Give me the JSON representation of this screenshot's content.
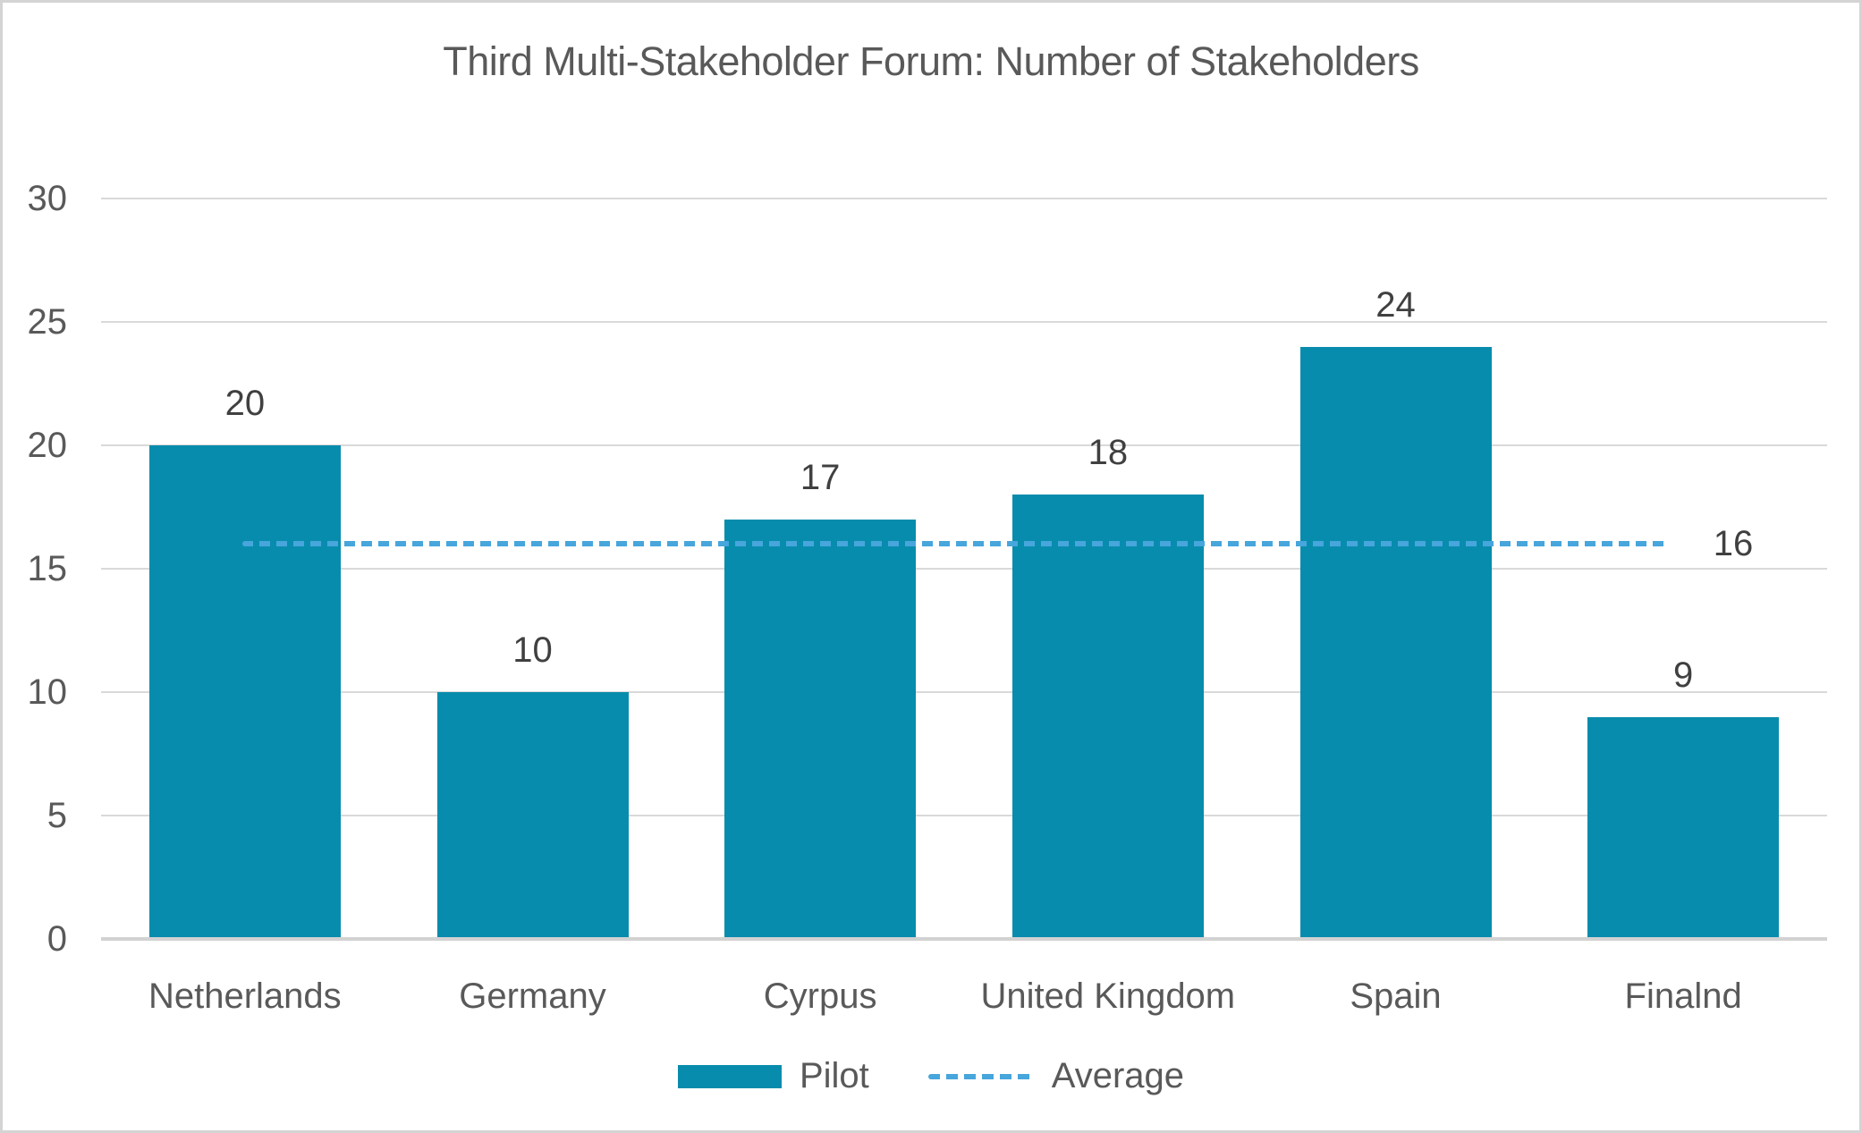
{
  "title": "Third Multi-Stakeholder Forum: Number of Stakeholders",
  "colors": {
    "bar": "#088cad",
    "average_line": "#47a6db",
    "gridline": "#d9d9d9",
    "axis_text": "#595959",
    "data_label_text": "#404040",
    "frame_border": "#d4d4d4",
    "background": "#ffffff"
  },
  "chart_data": {
    "type": "bar",
    "title": "Third Multi-Stakeholder Forum: Number of Stakeholders",
    "categories": [
      "Netherlands",
      "Germany",
      "Cyrpus",
      "United Kingdom",
      "Spain",
      "Finalnd"
    ],
    "series": [
      {
        "name": "Pilot",
        "values": [
          20,
          10,
          17,
          18,
          24,
          9
        ]
      }
    ],
    "data_labels": [
      "20",
      "10",
      "17",
      "18",
      "24",
      "9"
    ],
    "average_line": {
      "name": "Average",
      "value": 16,
      "label": "16",
      "style": "dashed"
    },
    "xlabel": "",
    "ylabel": "",
    "ylim": [
      0,
      30
    ],
    "ytick_step": 5,
    "yticks": [
      "0",
      "5",
      "10",
      "15",
      "20",
      "25",
      "30"
    ],
    "grid": true,
    "legend_position": "bottom"
  },
  "legend": {
    "items": [
      {
        "label": "Pilot",
        "swatch": "bar"
      },
      {
        "label": "Average",
        "swatch": "dashed-line"
      }
    ]
  }
}
